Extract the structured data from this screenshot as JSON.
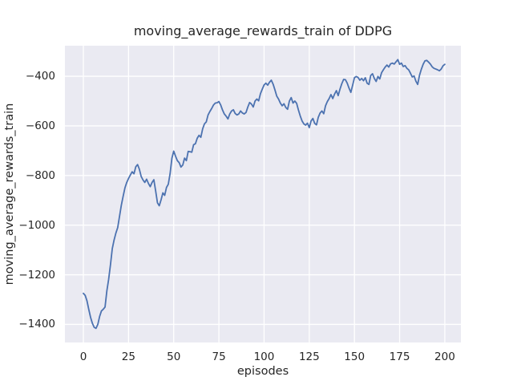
{
  "figure": {
    "background": "#ffffff"
  },
  "chart_data": {
    "type": "line",
    "title": "moving_average_rewards_train of DDPG",
    "xlabel": "episodes",
    "ylabel": "moving_average_rewards_train",
    "legend": "none",
    "grid": true,
    "x_ticks": [
      0,
      25,
      50,
      75,
      100,
      125,
      150,
      175,
      200
    ],
    "x_tick_labels": [
      "0",
      "25",
      "50",
      "75",
      "100",
      "125",
      "150",
      "175",
      "200"
    ],
    "y_ticks": [
      -400,
      -600,
      -800,
      -1000,
      -1200,
      -1400
    ],
    "y_tick_labels": [
      "−400",
      "−600",
      "−800",
      "−1000",
      "−1200",
      "−1400"
    ],
    "xlim": [
      -10.2,
      208.9
    ],
    "ylim": [
      -1473,
      -277
    ],
    "style": {
      "axes_background": "#EAEAF2",
      "grid_color": "#FFFFFF",
      "line_color": "#4C72B0",
      "text_color": "#262626"
    },
    "series": [
      {
        "name": "moving_average_rewards_train",
        "x_start": 0,
        "x_step": 1,
        "y": [
          -1275,
          -1283,
          -1305,
          -1340,
          -1372,
          -1396,
          -1412,
          -1416,
          -1400,
          -1368,
          -1346,
          -1339,
          -1330,
          -1265,
          -1218,
          -1160,
          -1095,
          -1060,
          -1032,
          -1010,
          -965,
          -920,
          -884,
          -850,
          -828,
          -812,
          -798,
          -785,
          -793,
          -765,
          -756,
          -775,
          -804,
          -818,
          -828,
          -815,
          -832,
          -845,
          -828,
          -817,
          -862,
          -910,
          -922,
          -898,
          -870,
          -880,
          -848,
          -835,
          -792,
          -730,
          -702,
          -722,
          -740,
          -748,
          -766,
          -758,
          -730,
          -740,
          -703,
          -704,
          -706,
          -676,
          -672,
          -650,
          -638,
          -646,
          -612,
          -592,
          -584,
          -556,
          -542,
          -530,
          -516,
          -508,
          -507,
          -502,
          -516,
          -536,
          -552,
          -561,
          -572,
          -552,
          -540,
          -535,
          -550,
          -556,
          -552,
          -540,
          -548,
          -552,
          -546,
          -524,
          -506,
          -512,
          -524,
          -500,
          -492,
          -499,
          -470,
          -452,
          -435,
          -428,
          -436,
          -424,
          -416,
          -432,
          -455,
          -480,
          -492,
          -508,
          -519,
          -511,
          -526,
          -533,
          -500,
          -486,
          -508,
          -500,
          -509,
          -536,
          -560,
          -580,
          -592,
          -597,
          -589,
          -607,
          -580,
          -570,
          -590,
          -596,
          -565,
          -548,
          -540,
          -551,
          -519,
          -502,
          -490,
          -474,
          -490,
          -472,
          -458,
          -478,
          -452,
          -430,
          -413,
          -414,
          -428,
          -448,
          -465,
          -436,
          -406,
          -401,
          -405,
          -416,
          -409,
          -418,
          -406,
          -428,
          -433,
          -397,
          -390,
          -409,
          -421,
          -401,
          -411,
          -386,
          -374,
          -363,
          -355,
          -363,
          -350,
          -347,
          -351,
          -342,
          -333,
          -352,
          -347,
          -361,
          -357,
          -368,
          -374,
          -388,
          -403,
          -399,
          -420,
          -433,
          -396,
          -372,
          -352,
          -338,
          -336,
          -343,
          -351,
          -362,
          -368,
          -371,
          -374,
          -378,
          -371,
          -358,
          -352
        ]
      }
    ]
  }
}
